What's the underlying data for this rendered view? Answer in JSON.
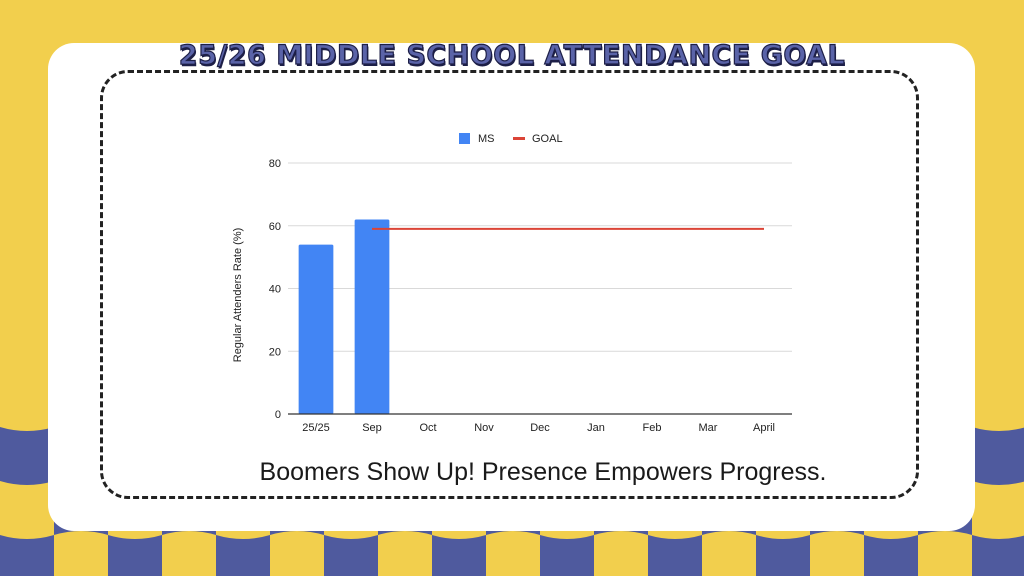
{
  "colors": {
    "background": "#f2cf4d",
    "pattern": "#4f5a9e",
    "card": "#ffffff",
    "title": "#5a63a8",
    "bar": "#4285f4",
    "goal_line": "#db4437",
    "grid": "#d9d9d9"
  },
  "chart_data": {
    "type": "bar",
    "title": "25/26 MIDDLE SCHOOL ATTENDANCE GOAL",
    "ylabel": "Regular Attenders Rate (%)",
    "xlabel": "",
    "categories": [
      "25/25",
      "Sep",
      "Oct",
      "Nov",
      "Dec",
      "Jan",
      "Feb",
      "Mar",
      "April"
    ],
    "series": [
      {
        "name": "MS",
        "type": "bar",
        "values": [
          54,
          62,
          null,
          null,
          null,
          null,
          null,
          null,
          null
        ]
      },
      {
        "name": "GOAL",
        "type": "line",
        "values": [
          null,
          59,
          59,
          59,
          59,
          59,
          59,
          59,
          59
        ]
      }
    ],
    "ylim": [
      0,
      80
    ],
    "yticks": [
      0,
      20,
      40,
      60,
      80
    ],
    "grid": true,
    "legend": "top-center"
  },
  "slogan": "Boomers Show Up! Presence Empowers Progress."
}
